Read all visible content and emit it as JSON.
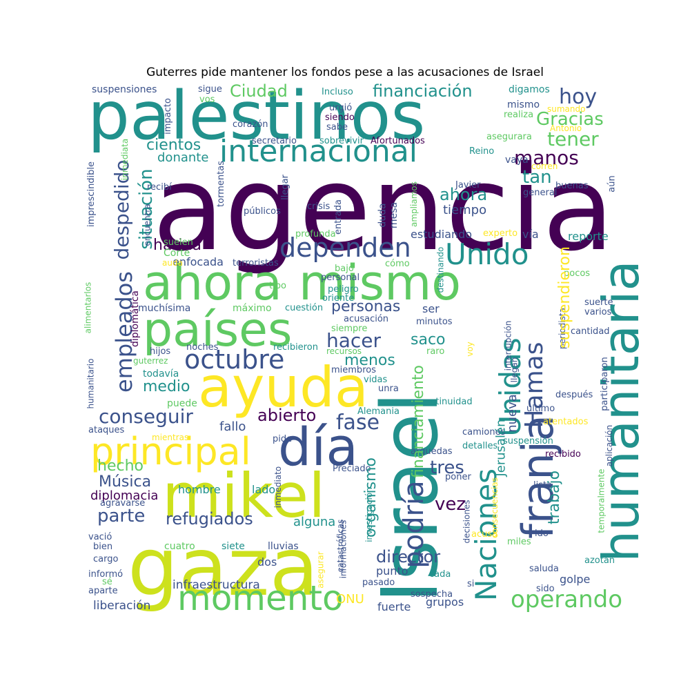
{
  "title": "Guterres pide mantener los fondos pese a las acusaciones de Israel",
  "palette": [
    "#440154",
    "#3b528b",
    "#21918c",
    "#5ec962",
    "#fde725"
  ],
  "words": {
    "agencia": "agencia",
    "palestinos": "palestinos",
    "israel": "Israel",
    "gaza": "gaza",
    "humanitaria": "humanitaria",
    "ahora": "ahora",
    "mismo": "mismo",
    "paises": "países",
    "ayuda": "ayuda",
    "mikel": "mikel",
    "dia": "día",
    "franja": "franja",
    "internacional": "internacional",
    "principal": "principal",
    "naciones": "Naciones",
    "unidas": "Unidas",
    "momento": "momento",
    "octubre": "octubre",
    "dependen": "dependen",
    "unido": "Unido",
    "empleados": "empleados",
    "hamas": "Hamas",
    "podria": "podría",
    "operando": "operando",
    "financiacion": "financiación",
    "ciudad": "Ciudad",
    "hoy": "hoy",
    "gracias": "Gracias",
    "tener": "tener",
    "manos": "manos",
    "tan": "tan",
    "ahora2": "ahora",
    "tiempo": "tiempo",
    "cientos": "cientos",
    "donante": "donante",
    "despedido": "despedido",
    "situacion": "situación",
    "harina": "harina",
    "personas": "personas",
    "hacer": "hacer",
    "saco": "saco",
    "menos": "menos",
    "conseguir": "conseguir",
    "abierto": "abierto",
    "fase": "fase",
    "fallo": "fallo",
    "hecho": "hecho",
    "musica": "Música",
    "diplomacia": "diplomacia",
    "parte": "parte",
    "refugiados": "refugiados",
    "hombre": "hombre",
    "lado": "lado",
    "medio": "medio",
    "puede": "puede",
    "todavia": "todavía",
    "muchisima": "muchísima",
    "maximo": "máximo",
    "enfocada": "enfocada",
    "terroristas": "terroristas",
    "corte": "Corte",
    "estudiando": "estudiando",
    "via": "vía",
    "reporte": "reporte",
    "suspendieron": "suspendieron",
    "trabajo": "trabajo",
    "jerusalen": "Jerusalén",
    "nueva": "nueva",
    "tres": "tres",
    "vez": "vez",
    "director": "director",
    "organismo": "organismo",
    "financiamiento": "financiamiento",
    "onu": "ONU",
    "punto": "punto",
    "fuerte": "fuerte",
    "grupos": "grupos",
    "golpe": "golpe",
    "infraestructura": "infraestructura",
    "liberacion": "liberación",
    "dos": "dos",
    "alguna": "alguna",
    "cuatro": "cuatro",
    "siete": "siete",
    "lluvias": "lluvias",
    "suspensiones": "suspensiones",
    "sigue": "sigue",
    "incluso": "Incluso",
    "urgio": "urgió",
    "siendo": "siendo",
    "sabe": "sabe",
    "digamos": "digamos",
    "realiza": "realiza",
    "sumando": "sumando",
    "antonio": "Antonio",
    "impacto": "impacto",
    "vos": "vos",
    "corazon": "corazón",
    "secretario": "secretario",
    "sobrevivir": "sobrevivir",
    "afortunados": "Afortunados",
    "asegurara": "asegurara",
    "reino": "Reino",
    "vaya": "vaya",
    "corren": "corren",
    "buenas": "buenas",
    "general": "general",
    "aun": "aún",
    "javier": "Javier",
    "inmediata": "inmediata",
    "imprescindible": "imprescindible",
    "recibi": "recibí",
    "tormentas": "tormentas",
    "llegar": "llegar",
    "publicos": "públicos",
    "crisis": "crisis",
    "entrada": "entrada",
    "duda": "duda",
    "mesa": "mesa",
    "ampliamos": "ampliamos",
    "encuentra": "encuentra",
    "suelen": "suelen",
    "profunda": "profunda",
    "experto": "experto",
    "auda": "auda",
    "bajo": "bajo",
    "como": "cómo",
    "personal": "personal",
    "destinando": "destinando",
    "pocos": "pocos",
    "tipo": "tipo",
    "peligro": "peligro",
    "oriente": "oriente",
    "cuestion": "cuestión",
    "minutos": "minutos",
    "diplomatica": "diplomática",
    "alimentarlos": "alimentarlos",
    "ser": "ser",
    "suerte": "suerte",
    "varios": "varios",
    "acusacion": "acusación",
    "siempre": "siempre",
    "cantidad": "cantidad",
    "noches": "noches",
    "recibieron": "recibieron",
    "recursos": "recursos",
    "interrupcion": "interrupción",
    "periodista": "periodista",
    "hijos": "hijos",
    "guterrez": "guterrez",
    "raro": "raro",
    "voy": "voy",
    "llegan": "llegan",
    "participaron": "participaron",
    "humanitario": "humanitario",
    "miembros": "miembros",
    "vidas": "vidas",
    "unra": "unra",
    "continuidad": "continuidad",
    "despues": "después",
    "ultimo": "último",
    "alemania": "Alemania",
    "ataques": "ataques",
    "mientras": "mientras",
    "pide": "pide",
    "camiones": "camiones",
    "atentados": "atentados",
    "aplicacion": "aplicación",
    "suspension": "suspensión",
    "arguedas": "arguedas",
    "detalles": "detalles",
    "recibido": "recibido",
    "inmediato": "inmediato",
    "preciado": "Preciado",
    "poner": "poner",
    "agravarse": "agravarse",
    "lista": "lista",
    "temporalmente": "temporalmente",
    "investigacion": "investigación",
    "consecuencias": "consecuencias",
    "vacio": "vació",
    "bien": "bien",
    "decisiones": "decisiones",
    "acusa": "acusa",
    "ido": "ido",
    "miles": "miles",
    "cargo": "cargo",
    "catastroficas": "catastróficas",
    "informaciones": "informaciones",
    "azotan": "azotan",
    "informo": "informó",
    "se": "sé",
    "asegurar": "asegurar",
    "saluda": "saluda",
    "cada": "cada",
    "aparte": "aparte",
    "pasado": "pasado",
    "si": "si",
    "sido": "sido",
    "sospecha": "sospecha"
  }
}
